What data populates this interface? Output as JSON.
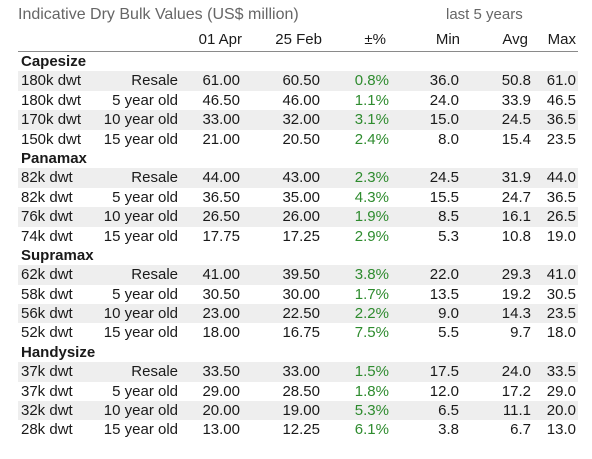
{
  "title": "Indicative Dry Bulk Values (US$ million)",
  "period_label": "last 5 years",
  "headers": {
    "apr": "01 Apr",
    "feb": "25 Feb",
    "pct": "±%",
    "min": "Min",
    "avg": "Avg",
    "max": "Max"
  },
  "colors": {
    "positive": "#2e8b2e",
    "shade": "#eeeeee"
  },
  "sections": [
    {
      "name": "Capesize",
      "rows": [
        {
          "size": "180k dwt",
          "age": "Resale",
          "apr": "61.00",
          "feb": "60.50",
          "pct": "0.8%",
          "min": "36.0",
          "avg": "50.8",
          "max": "61.0"
        },
        {
          "size": "180k dwt",
          "age": "5 year old",
          "apr": "46.50",
          "feb": "46.00",
          "pct": "1.1%",
          "min": "24.0",
          "avg": "33.9",
          "max": "46.5"
        },
        {
          "size": "170k dwt",
          "age": "10 year old",
          "apr": "33.00",
          "feb": "32.00",
          "pct": "3.1%",
          "min": "15.0",
          "avg": "24.5",
          "max": "36.5"
        },
        {
          "size": "150k dwt",
          "age": "15 year old",
          "apr": "21.00",
          "feb": "20.50",
          "pct": "2.4%",
          "min": "8.0",
          "avg": "15.4",
          "max": "23.5"
        }
      ]
    },
    {
      "name": "Panamax",
      "rows": [
        {
          "size": "82k dwt",
          "age": "Resale",
          "apr": "44.00",
          "feb": "43.00",
          "pct": "2.3%",
          "min": "24.5",
          "avg": "31.9",
          "max": "44.0"
        },
        {
          "size": "82k dwt",
          "age": "5 year old",
          "apr": "36.50",
          "feb": "35.00",
          "pct": "4.3%",
          "min": "15.5",
          "avg": "24.7",
          "max": "36.5"
        },
        {
          "size": "76k dwt",
          "age": "10 year old",
          "apr": "26.50",
          "feb": "26.00",
          "pct": "1.9%",
          "min": "8.5",
          "avg": "16.1",
          "max": "26.5"
        },
        {
          "size": "74k dwt",
          "age": "15 year old",
          "apr": "17.75",
          "feb": "17.25",
          "pct": "2.9%",
          "min": "5.3",
          "avg": "10.8",
          "max": "19.0"
        }
      ]
    },
    {
      "name": "Supramax",
      "rows": [
        {
          "size": "62k dwt",
          "age": "Resale",
          "apr": "41.00",
          "feb": "39.50",
          "pct": "3.8%",
          "min": "22.0",
          "avg": "29.3",
          "max": "41.0"
        },
        {
          "size": "58k dwt",
          "age": "5 year old",
          "apr": "30.50",
          "feb": "30.00",
          "pct": "1.7%",
          "min": "13.5",
          "avg": "19.2",
          "max": "30.5"
        },
        {
          "size": "56k dwt",
          "age": "10 year old",
          "apr": "23.00",
          "feb": "22.50",
          "pct": "2.2%",
          "min": "9.0",
          "avg": "14.3",
          "max": "23.5"
        },
        {
          "size": "52k dwt",
          "age": "15 year old",
          "apr": "18.00",
          "feb": "16.75",
          "pct": "7.5%",
          "min": "5.5",
          "avg": "9.7",
          "max": "18.0"
        }
      ]
    },
    {
      "name": "Handysize",
      "rows": [
        {
          "size": "37k dwt",
          "age": "Resale",
          "apr": "33.50",
          "feb": "33.00",
          "pct": "1.5%",
          "min": "17.5",
          "avg": "24.0",
          "max": "33.5"
        },
        {
          "size": "37k dwt",
          "age": "5 year old",
          "apr": "29.00",
          "feb": "28.50",
          "pct": "1.8%",
          "min": "12.0",
          "avg": "17.2",
          "max": "29.0"
        },
        {
          "size": "32k dwt",
          "age": "10 year old",
          "apr": "20.00",
          "feb": "19.00",
          "pct": "5.3%",
          "min": "6.5",
          "avg": "11.1",
          "max": "20.0"
        },
        {
          "size": "28k dwt",
          "age": "15 year old",
          "apr": "13.00",
          "feb": "12.25",
          "pct": "6.1%",
          "min": "3.8",
          "avg": "6.7",
          "max": "13.0"
        }
      ]
    }
  ]
}
